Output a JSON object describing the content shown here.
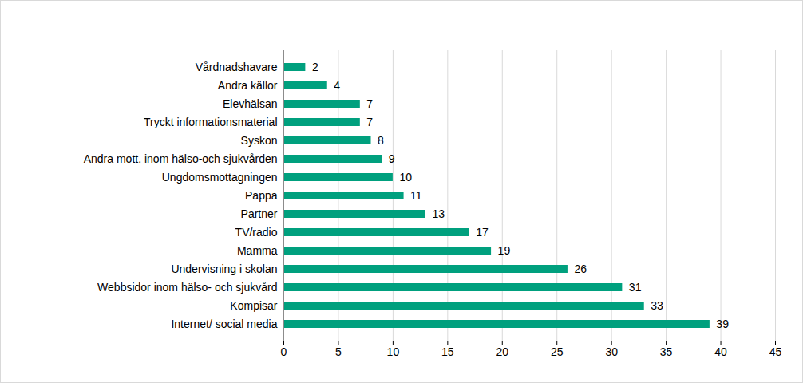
{
  "chart_data": {
    "type": "bar",
    "orientation": "horizontal",
    "categories": [
      "Vårdnadshavare",
      "Andra källor",
      "Elevhälsan",
      "Tryckt informationsmaterial",
      "Syskon",
      "Andra mott. inom hälso-och sjukvården",
      "Ungdomsmottagningen",
      "Pappa",
      "Partner",
      "TV/radio",
      "Mamma",
      "Undervisning i skolan",
      "Webbsidor inom hälso- och sjukvård",
      "Kompisar",
      "Internet/ social media"
    ],
    "values": [
      2,
      4,
      7,
      7,
      8,
      9,
      10,
      11,
      13,
      17,
      19,
      26,
      31,
      33,
      39
    ],
    "color": "#00a07e",
    "xlim": [
      0,
      45
    ],
    "xticks": [
      0,
      5,
      10,
      15,
      20,
      25,
      30,
      35,
      40,
      45
    ],
    "grid": true,
    "data_labels": true
  }
}
